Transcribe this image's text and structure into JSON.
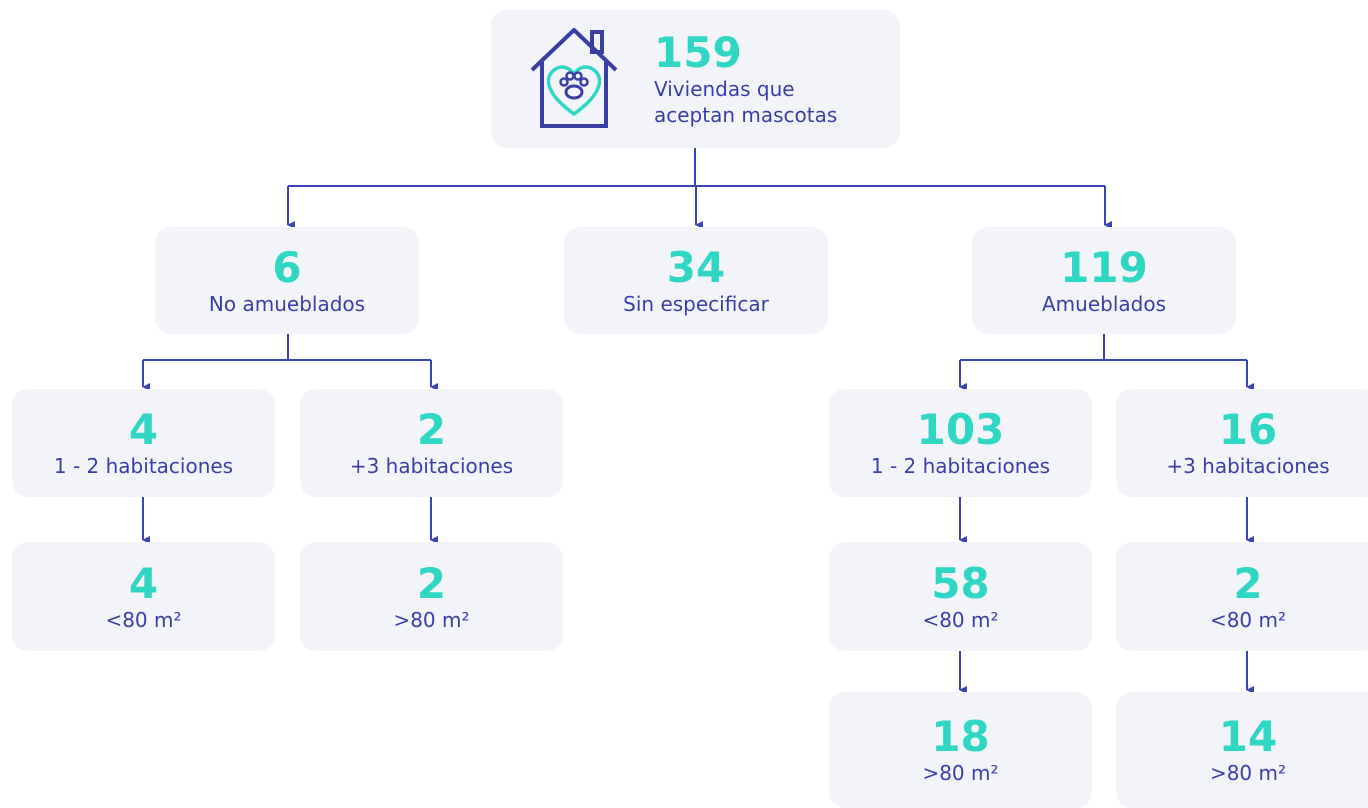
{
  "nodes": [
    {
      "value": 159,
      "label": "Viviendas que aceptan mascotas"
    },
    {
      "value": 6,
      "label": "No amueblados"
    },
    {
      "value": 34,
      "label": "Sin especificar"
    },
    {
      "value": 119,
      "label": "Amueblados"
    },
    {
      "value": 4,
      "label": "1 - 2 habitaciones"
    },
    {
      "value": 2,
      "label": "+3 habitaciones"
    },
    {
      "value": 103,
      "label": "1 - 2 habitaciones"
    },
    {
      "value": 16,
      "label": "+3 habitaciones"
    },
    {
      "value": 4,
      "label": "<80 m²"
    },
    {
      "value": 2,
      "label": ">80 m²"
    },
    {
      "value": 58,
      "label": "<80 m²"
    },
    {
      "value": 2,
      "label": "<80 m²"
    },
    {
      "value": 18,
      "label": ">80 m²"
    },
    {
      "value": 14,
      "label": ">80 m²"
    }
  ]
}
